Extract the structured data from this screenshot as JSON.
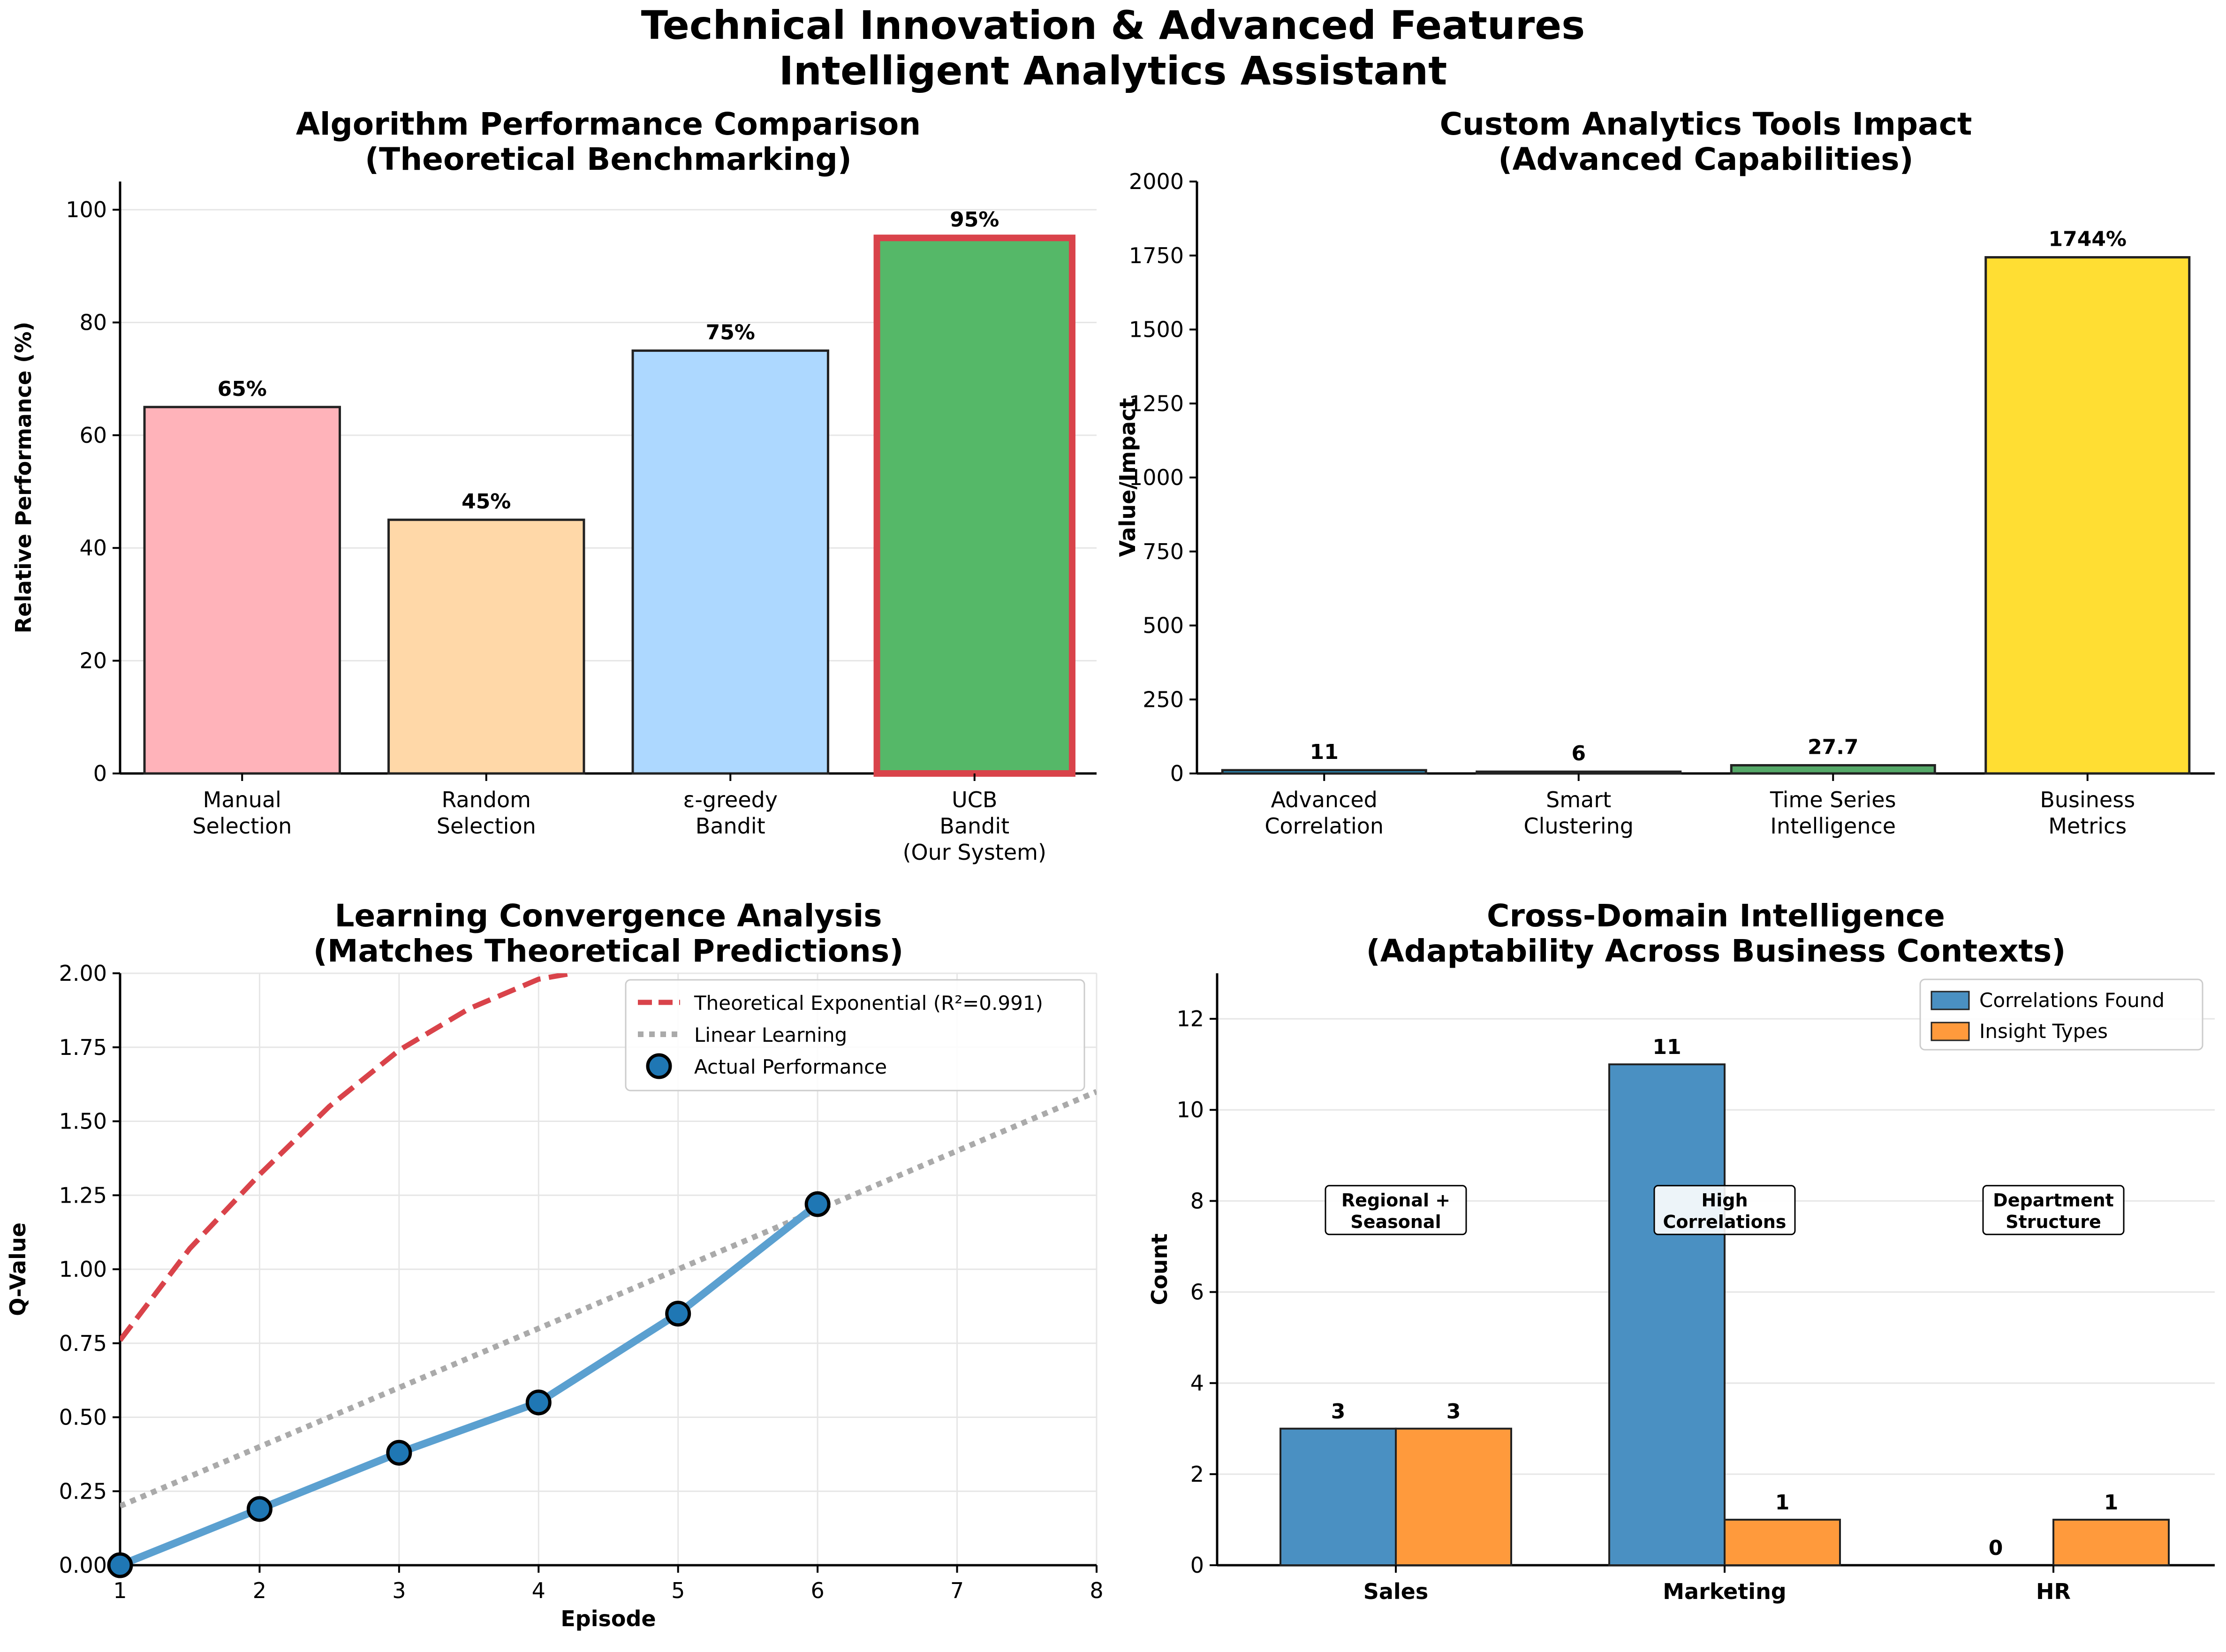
{
  "figure": {
    "title_line1": "Technical Innovation & Advanced Features",
    "title_line2": "Intelligent Analytics Assistant"
  },
  "chart_data": [
    {
      "id": "algo",
      "type": "bar",
      "title_line1": "Algorithm Performance Comparison",
      "title_line2": "(Theoretical Benchmarking)",
      "ylabel": "Relative Performance (%)",
      "xlabel": "",
      "ylim": [
        0,
        105
      ],
      "yticks": [
        0,
        20,
        40,
        60,
        80,
        100
      ],
      "grid": "y",
      "categories": [
        [
          "Manual",
          "Selection"
        ],
        [
          "Random",
          "Selection"
        ],
        [
          "ε-greedy",
          "Bandit"
        ],
        [
          "UCB",
          "Bandit",
          "(Our System)"
        ]
      ],
      "values": [
        65,
        45,
        75,
        95
      ],
      "value_labels": [
        "65%",
        "45%",
        "75%",
        "95%"
      ],
      "colors": [
        "#ffb3ba",
        "#ffd8a8",
        "#add8ff",
        "#55b868"
      ],
      "highlight_index": 3,
      "highlight_color": "#d9434a"
    },
    {
      "id": "tools",
      "type": "bar",
      "title_line1": "Custom Analytics Tools Impact",
      "title_line2": "(Advanced Capabilities)",
      "ylabel": "Value/Impact",
      "xlabel": "",
      "ylim": [
        0,
        2000
      ],
      "yticks": [
        0,
        250,
        500,
        750,
        1000,
        1250,
        1500,
        1750,
        2000
      ],
      "grid": "none",
      "categories": [
        [
          "Advanced",
          "Correlation"
        ],
        [
          "Smart",
          "Clustering"
        ],
        [
          "Time Series",
          "Intelligence"
        ],
        [
          "Business",
          "Metrics"
        ]
      ],
      "values": [
        11,
        6,
        27.7,
        1744
      ],
      "value_labels": [
        "11",
        "6",
        "27.7",
        "1744%"
      ],
      "colors": [
        "#2ca7e0",
        "#2b7bba",
        "#55a868",
        "#ffde33"
      ]
    },
    {
      "id": "learning",
      "type": "line",
      "title_line1": "Learning Convergence Analysis",
      "title_line2": "(Matches Theoretical Predictions)",
      "xlabel": "Episode",
      "ylabel": "Q-Value",
      "xlim": [
        1,
        8
      ],
      "ylim": [
        0,
        2.0
      ],
      "xticks": [
        1,
        2,
        3,
        4,
        5,
        6,
        7,
        8
      ],
      "yticks": [
        0,
        0.25,
        0.5,
        0.75,
        1.0,
        1.25,
        1.5,
        1.75,
        2.0
      ],
      "ytick_labels": [
        "0.00",
        "0.25",
        "0.50",
        "0.75",
        "1.00",
        "1.25",
        "1.50",
        "1.75",
        "2.00"
      ],
      "grid": true,
      "legend_position": "top-right",
      "series": [
        {
          "name": "Theoretical Exponential (R²=0.991)",
          "style": "dashed",
          "color": "#d9434a",
          "x": [
            1,
            1.5,
            2,
            2.5,
            3,
            3.5,
            4,
            4.24
          ],
          "y": [
            0.76,
            1.07,
            1.32,
            1.55,
            1.74,
            1.88,
            1.98,
            2.0
          ]
        },
        {
          "name": "Linear Learning",
          "style": "dotted",
          "color": "#aaaaaa",
          "x": [
            1,
            8
          ],
          "y": [
            0.2,
            1.6
          ]
        },
        {
          "name": "Actual Performance",
          "style": "line+markers",
          "color": "#1f77b4",
          "x": [
            1,
            2,
            3,
            4,
            5,
            6
          ],
          "y": [
            0.0,
            0.19,
            0.38,
            0.55,
            0.85,
            1.22
          ]
        }
      ]
    },
    {
      "id": "domain",
      "type": "bar",
      "title_line1": "Cross-Domain Intelligence",
      "title_line2": "(Adaptability Across Business Contexts)",
      "ylabel": "Count",
      "xlabel": "",
      "ylim": [
        0,
        13
      ],
      "yticks": [
        0,
        2,
        4,
        6,
        8,
        10,
        12
      ],
      "grid": "y",
      "legend_position": "top-right",
      "categories": [
        "Sales",
        "Marketing",
        "HR"
      ],
      "series": [
        {
          "name": "Correlations Found",
          "values": [
            3,
            11,
            0
          ],
          "labels": [
            "3",
            "11",
            "0"
          ],
          "color": "#4a90c2"
        },
        {
          "name": "Insight Types",
          "values": [
            3,
            1,
            1
          ],
          "labels": [
            "3",
            "1",
            "1"
          ],
          "color": "#ff9a3c"
        }
      ],
      "annotations": [
        [
          "Regional +",
          "Seasonal"
        ],
        [
          "High",
          "Correlations"
        ],
        [
          "Department",
          "Structure"
        ]
      ],
      "annotation_y": 7.8
    }
  ]
}
